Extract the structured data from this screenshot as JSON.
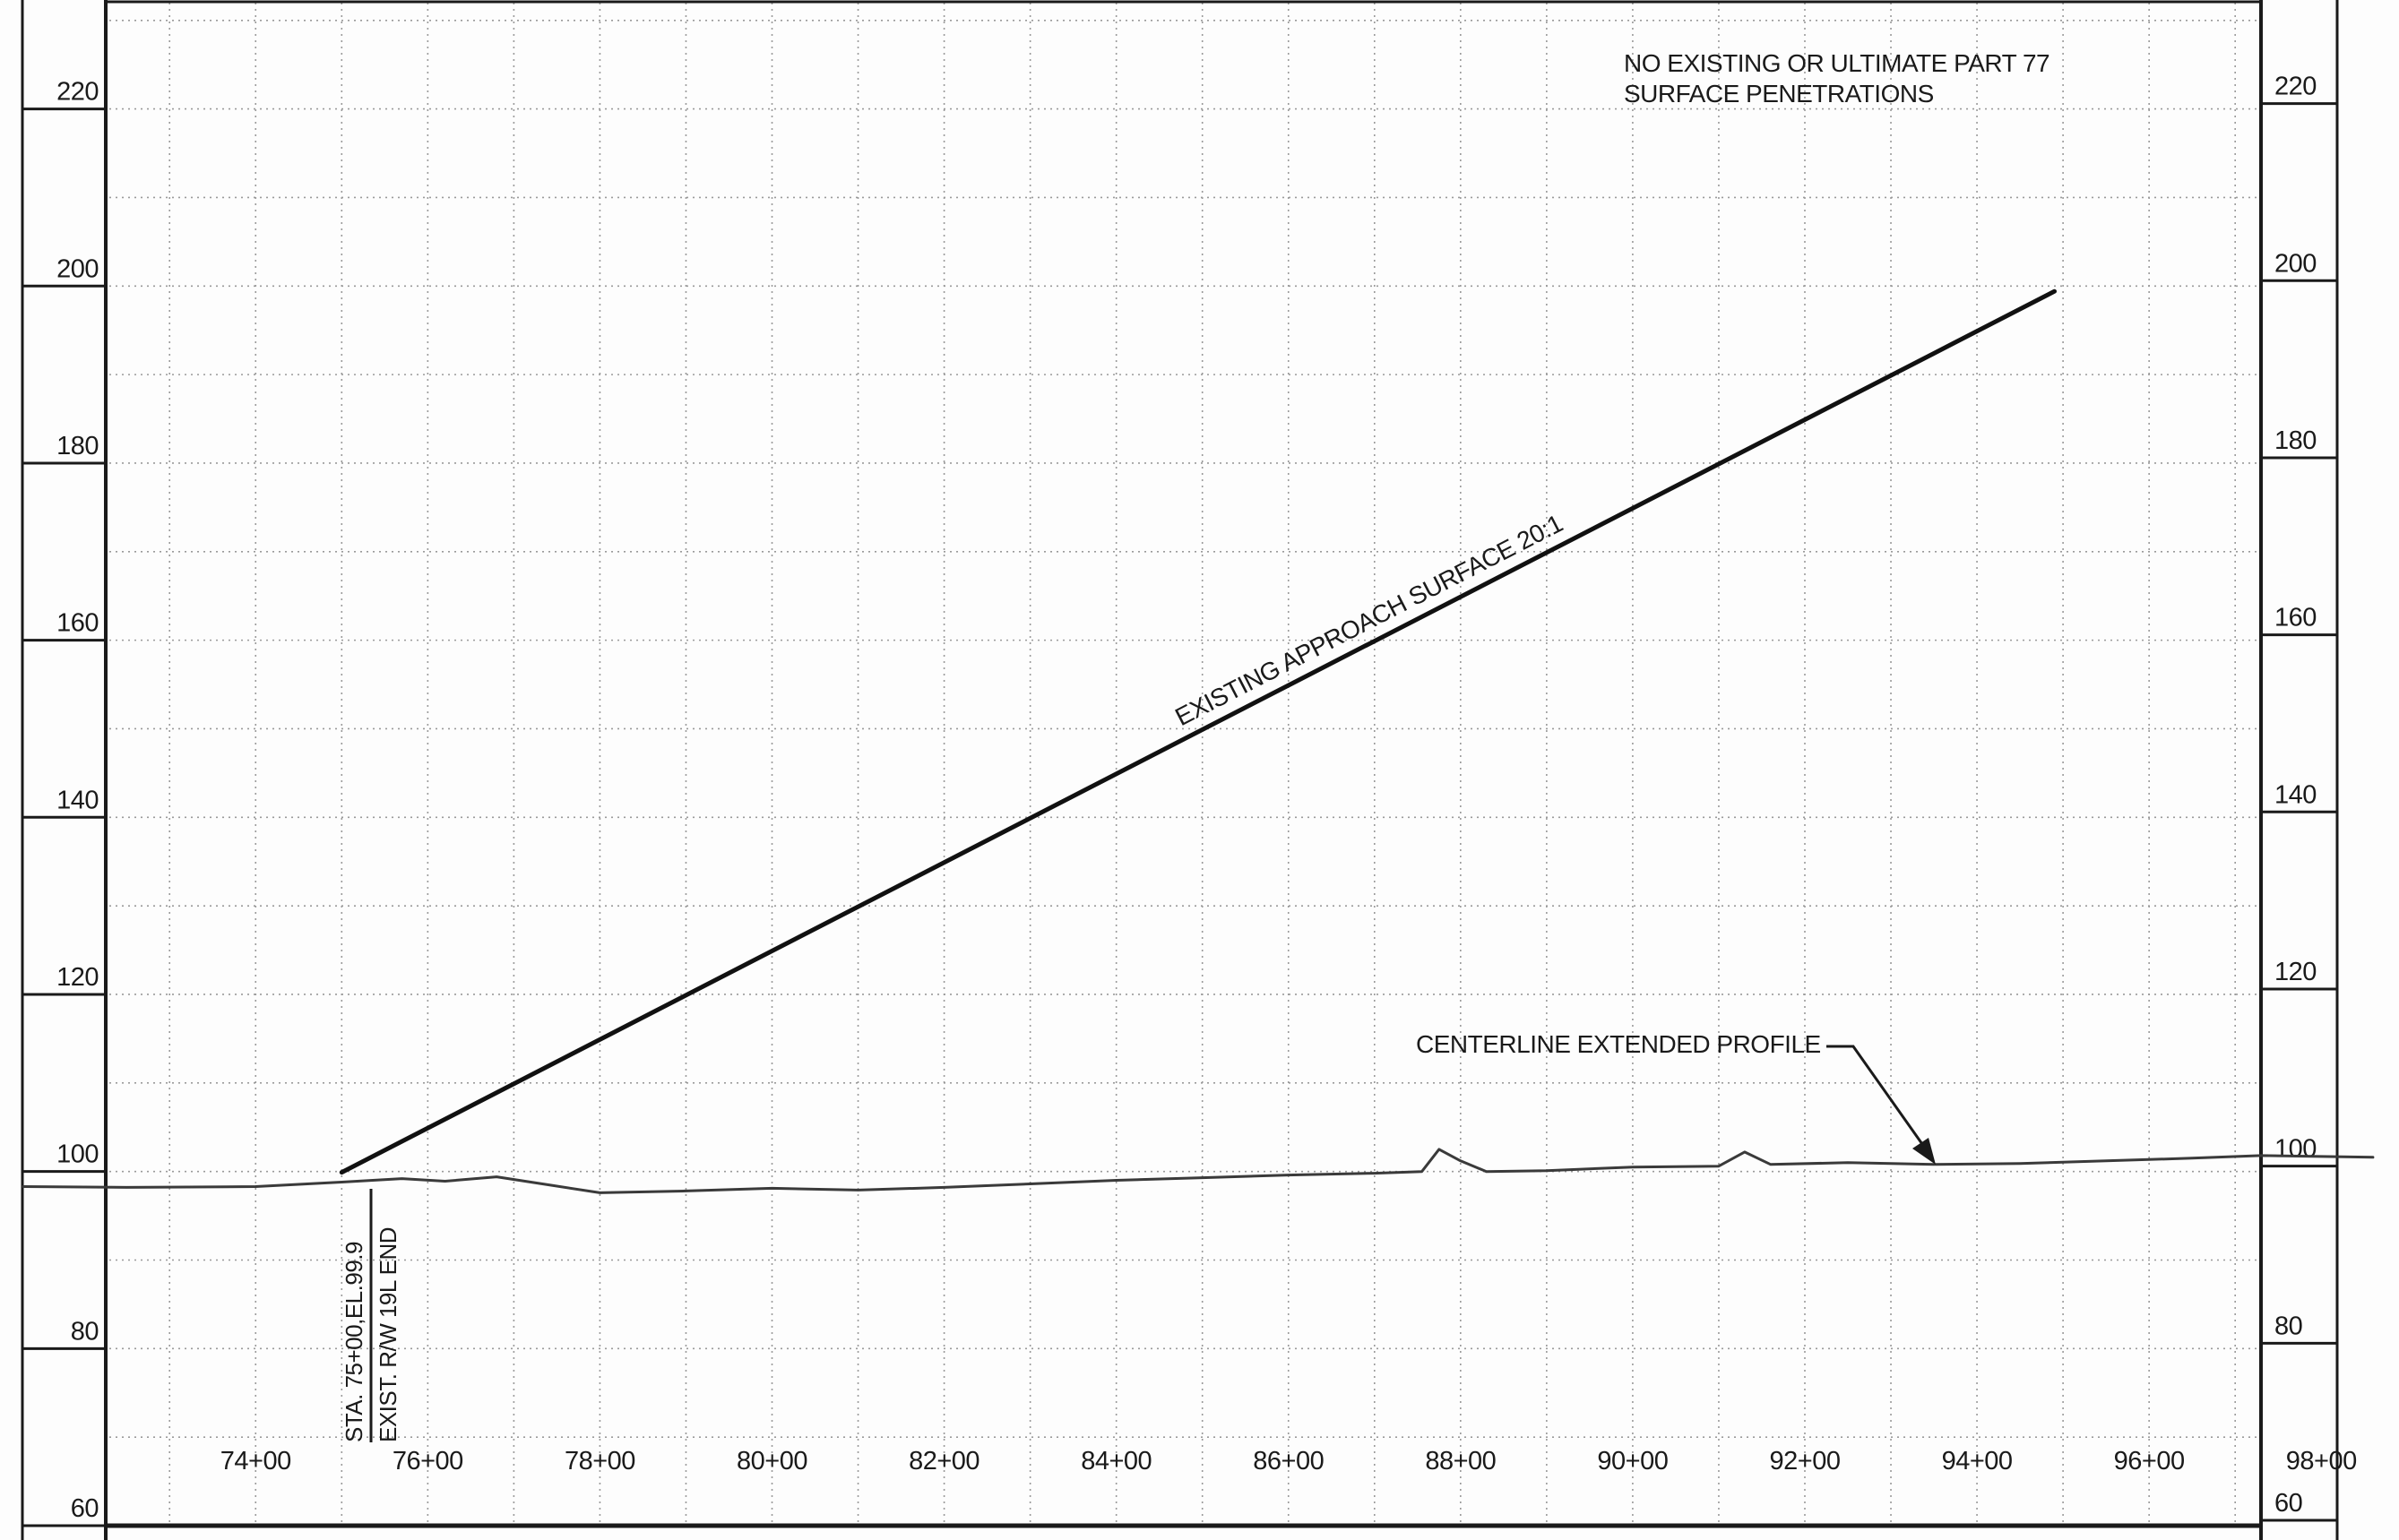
{
  "chart_data": {
    "type": "line",
    "title": "",
    "xlabel": "",
    "ylabel": "",
    "x_ticks": [
      "74+00",
      "76+00",
      "78+00",
      "80+00",
      "82+00",
      "84+00",
      "86+00",
      "88+00",
      "90+00",
      "92+00",
      "94+00",
      "96+00",
      "98+00"
    ],
    "y_ticks": [
      "60",
      "80",
      "100",
      "120",
      "140",
      "160",
      "180",
      "200",
      "220"
    ],
    "xlim": [
      72.3,
      97.3
    ],
    "ylim": [
      60,
      232
    ],
    "grid": true,
    "series": [
      {
        "name": "CENTERLINE EXTENDED PROFILE",
        "color": "#3a3a3a",
        "points": [
          [
            71.3,
            98.3
          ],
          [
            72.5,
            98.2
          ],
          [
            74.0,
            98.3
          ],
          [
            75.0,
            98.8
          ],
          [
            75.7,
            99.2
          ],
          [
            76.2,
            98.9
          ],
          [
            76.8,
            99.4
          ],
          [
            77.4,
            98.5
          ],
          [
            78.0,
            97.6
          ],
          [
            79.0,
            97.8
          ],
          [
            80.0,
            98.1
          ],
          [
            81.0,
            97.9
          ],
          [
            82.0,
            98.2
          ],
          [
            83.0,
            98.6
          ],
          [
            84.0,
            99.0
          ],
          [
            85.0,
            99.3
          ],
          [
            86.0,
            99.6
          ],
          [
            87.0,
            99.8
          ],
          [
            87.55,
            100.0
          ],
          [
            87.75,
            102.5
          ],
          [
            88.0,
            101.2
          ],
          [
            88.3,
            100.0
          ],
          [
            89.0,
            100.1
          ],
          [
            90.0,
            100.5
          ],
          [
            91.0,
            100.6
          ],
          [
            91.3,
            102.2
          ],
          [
            91.6,
            100.8
          ],
          [
            92.5,
            101.0
          ],
          [
            93.5,
            100.8
          ],
          [
            94.5,
            100.9
          ],
          [
            95.5,
            101.2
          ],
          [
            96.5,
            101.5
          ],
          [
            97.3,
            101.8
          ],
          [
            98.6,
            101.6
          ]
        ]
      },
      {
        "name": "EXISTING APPROACH SURFACE 20:1",
        "color": "#111111",
        "points": [
          [
            75.0,
            99.9
          ],
          [
            94.9,
            199.4
          ]
        ]
      }
    ],
    "annotations": {
      "approach_label": "EXISTING APPROACH SURFACE 20:1",
      "profile_label": "CENTERLINE EXTENDED PROFILE",
      "note_line1": "NO EXISTING OR ULTIMATE PART 77",
      "note_line2": "SURFACE PENETRATIONS",
      "station_line1": "STA. 75+00,EL.99.9",
      "station_line2": "EXIST. R/W 19L END"
    }
  }
}
